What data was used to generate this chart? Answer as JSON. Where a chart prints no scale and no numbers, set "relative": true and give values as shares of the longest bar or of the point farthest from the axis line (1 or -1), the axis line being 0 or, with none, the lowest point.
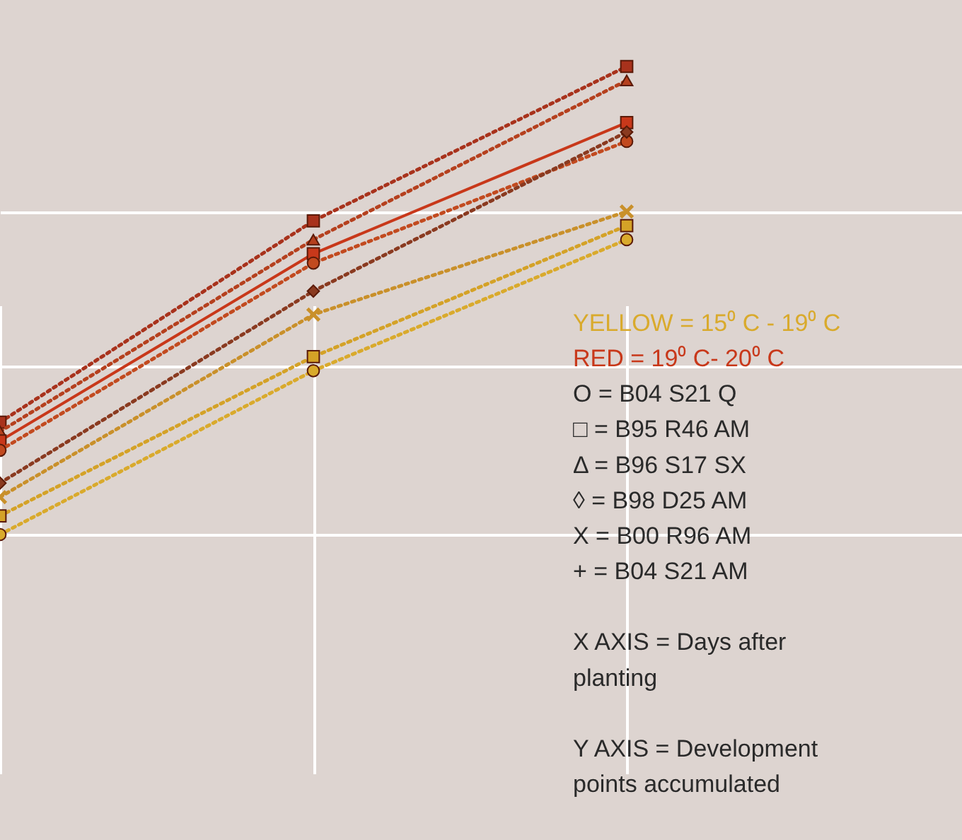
{
  "chart_data": {
    "type": "line",
    "relative": true,
    "categories": [
      null,
      null,
      null
    ],
    "grid": true,
    "line_style": "dotted",
    "series": [
      {
        "color": "#a8321c",
        "marker": "square",
        "values": [
          0.24,
          0.67,
          1.0
        ]
      },
      {
        "color": "#b5401e",
        "marker": "triangle",
        "values": [
          0.22,
          0.63,
          0.97
        ]
      },
      {
        "color": "#c8381a",
        "marker": "square",
        "line_style": "solid",
        "values": [
          0.2,
          0.6,
          0.88
        ]
      },
      {
        "color": "#c24a1f",
        "marker": "circle",
        "values": [
          0.18,
          0.58,
          0.84
        ]
      },
      {
        "color": "#8a3a20",
        "marker": "diamond",
        "values": [
          0.11,
          0.52,
          0.86
        ]
      },
      {
        "color": "#c9902a",
        "marker": "cross",
        "values": [
          0.08,
          0.47,
          0.69
        ]
      },
      {
        "color": "#d4a227",
        "marker": "square",
        "values": [
          0.04,
          0.38,
          0.66
        ]
      },
      {
        "color": "#d9aa2c",
        "marker": "circle",
        "values": [
          0.0,
          0.35,
          0.63
        ]
      }
    ],
    "annotations": [
      "YELLOW = 15⁰ C - 19⁰ C",
      "RED = 19⁰ C- 20⁰ C",
      "O = B04 S21 Q",
      "□ = B95 R46 AM",
      "Δ = B96 S17 SX",
      "◊ = B98 D25 AM",
      "X = B00 R96 AM",
      "+ = B04 S21 AM",
      "X  AXIS  = Days after",
      "planting",
      "Y AXIS = Development",
      "points accumulated"
    ]
  }
}
